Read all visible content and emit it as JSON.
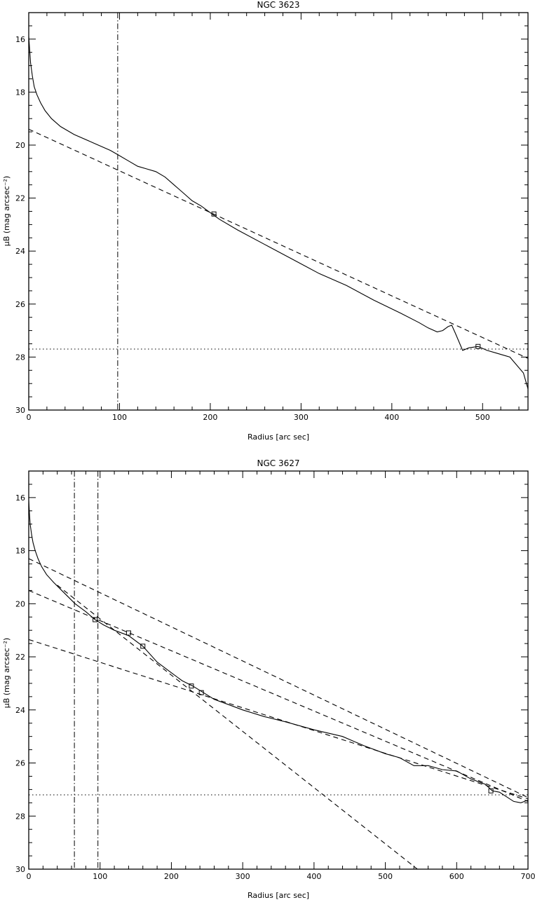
{
  "chart_data": [
    {
      "type": "line",
      "title": "NGC 3623",
      "xlabel": "Radius [arc sec]",
      "ylabel": "μB (mag arcsec⁻²)",
      "xlim": [
        0,
        550
      ],
      "ylim": [
        30,
        15
      ],
      "y_inverted": true,
      "grid": false,
      "xticks": [
        0,
        100,
        200,
        300,
        400,
        500
      ],
      "yticks": [
        16,
        18,
        20,
        22,
        24,
        26,
        28,
        30
      ],
      "profile": {
        "x": [
          0,
          1,
          2,
          4,
          6,
          9,
          13,
          18,
          25,
          35,
          50,
          70,
          90,
          100,
          110,
          120,
          130,
          140,
          150,
          160,
          170,
          180,
          190,
          200,
          210,
          230,
          260,
          290,
          320,
          350,
          380,
          410,
          430,
          440,
          450,
          456,
          462,
          466,
          470,
          478,
          485,
          495,
          505,
          515,
          530,
          545,
          550
        ],
        "y": [
          15.9,
          16.4,
          16.9,
          17.4,
          17.8,
          18.1,
          18.4,
          18.7,
          19.0,
          19.3,
          19.6,
          19.9,
          20.2,
          20.4,
          20.6,
          20.8,
          20.9,
          21.0,
          21.2,
          21.5,
          21.8,
          22.1,
          22.3,
          22.55,
          22.8,
          23.2,
          23.75,
          24.3,
          24.85,
          25.3,
          25.85,
          26.35,
          26.7,
          26.9,
          27.05,
          27.0,
          26.85,
          26.8,
          27.1,
          27.75,
          27.65,
          27.6,
          27.75,
          27.85,
          28.0,
          28.6,
          29.2
        ],
        "markers": [
          [
            204,
            22.6
          ],
          [
            495,
            27.6
          ]
        ]
      },
      "fits": [
        {
          "x": [
            0,
            550
          ],
          "y": [
            19.4,
            28.05
          ]
        }
      ],
      "sky_level": 27.7,
      "vertical_lines": [
        98
      ]
    },
    {
      "type": "line",
      "title": "NGC 3627",
      "xlabel": "Radius [arc sec]",
      "ylabel": "μB (mag arcsec⁻²)",
      "xlim": [
        0,
        700
      ],
      "ylim": [
        30,
        15
      ],
      "y_inverted": true,
      "grid": false,
      "xticks": [
        0,
        100,
        200,
        300,
        400,
        500,
        600,
        700
      ],
      "yticks": [
        16,
        18,
        20,
        22,
        24,
        26,
        28,
        30
      ],
      "profile": {
        "x": [
          0,
          1,
          2,
          4,
          6,
          9,
          13,
          18,
          25,
          35,
          50,
          65,
          80,
          93,
          105,
          120,
          140,
          160,
          180,
          200,
          215,
          230,
          245,
          260,
          280,
          300,
          330,
          360,
          400,
          440,
          470,
          500,
          520,
          540,
          560,
          580,
          600,
          620,
          640,
          650,
          660,
          680,
          690,
          700
        ],
        "y": [
          16.1,
          16.6,
          17.0,
          17.4,
          17.7,
          18.0,
          18.3,
          18.6,
          18.9,
          19.2,
          19.6,
          20.0,
          20.3,
          20.6,
          20.8,
          21.0,
          21.2,
          21.6,
          22.2,
          22.6,
          22.9,
          23.1,
          23.35,
          23.6,
          23.8,
          24.0,
          24.25,
          24.45,
          24.75,
          25.0,
          25.35,
          25.65,
          25.8,
          26.1,
          26.1,
          26.25,
          26.3,
          26.6,
          26.8,
          27.05,
          27.1,
          27.45,
          27.5,
          27.4
        ],
        "markers": [
          [
            93,
            20.6
          ],
          [
            140,
            21.1
          ],
          [
            160,
            21.6
          ],
          [
            228,
            23.1
          ],
          [
            242,
            23.35
          ],
          [
            648,
            27.05
          ]
        ]
      },
      "fits": [
        {
          "x": [
            0,
            700
          ],
          "y": [
            18.3,
            27.3
          ]
        },
        {
          "x": [
            0,
            700
          ],
          "y": [
            19.5,
            27.45
          ]
        },
        {
          "x": [
            0,
            700
          ],
          "y": [
            21.35,
            27.35
          ]
        },
        {
          "x": [
            40,
            545
          ],
          "y": [
            19.3,
            30.0
          ]
        }
      ],
      "sky_level": 27.2,
      "vertical_lines": [
        64,
        97
      ]
    }
  ]
}
